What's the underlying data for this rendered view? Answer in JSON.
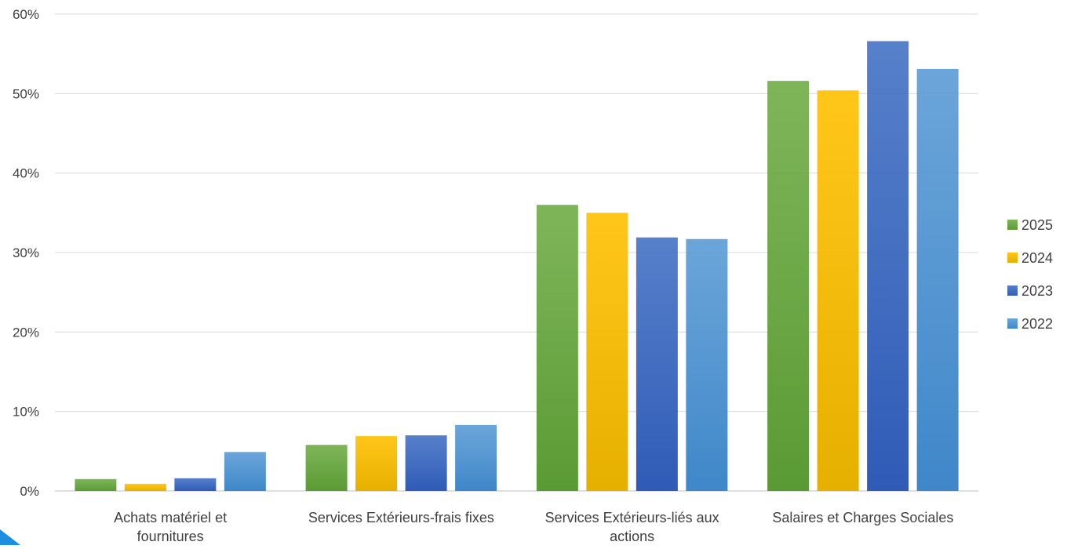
{
  "chart_data": {
    "type": "bar",
    "title": "",
    "xlabel": "",
    "ylabel": "",
    "categories": [
      [
        "Achats matériel et",
        "fournitures"
      ],
      [
        "Services Extérieurs-frais fixes"
      ],
      [
        "Services Extérieurs-liés aux",
        "actions"
      ],
      [
        "Salaires et Charges Sociales"
      ]
    ],
    "series": [
      {
        "name": "2025",
        "values": [
          1.5,
          5.8,
          36.0,
          51.6
        ],
        "color": "#70AD47",
        "color_dark": "#5a9a34"
      },
      {
        "name": "2024",
        "values": [
          0.9,
          6.9,
          35.0,
          50.4
        ],
        "color": "#FFC000",
        "color_dark": "#e6b000"
      },
      {
        "name": "2023",
        "values": [
          1.6,
          7.0,
          31.9,
          56.6
        ],
        "color": "#4472C4",
        "color_dark": "#2f5bb7"
      },
      {
        "name": "2022",
        "values": [
          4.9,
          8.3,
          31.7,
          53.1
        ],
        "color": "#5B9BD5",
        "color_dark": "#3f87c9"
      }
    ],
    "ylim": [
      0,
      60
    ],
    "yticks": [
      0,
      10,
      20,
      30,
      40,
      50,
      60
    ],
    "ytick_labels": [
      "0%",
      "10%",
      "20%",
      "30%",
      "40%",
      "50%",
      "60%"
    ],
    "grid": true,
    "legend_position": "right"
  }
}
